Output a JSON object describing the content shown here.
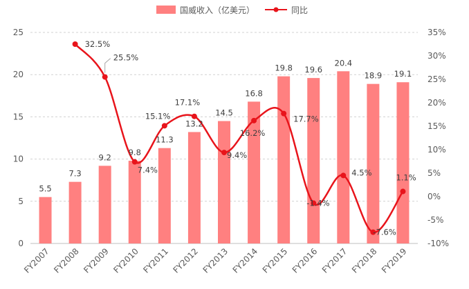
{
  "chart_data": {
    "type": "bar+line",
    "categories": [
      "FY2007",
      "FY2008",
      "FY2009",
      "FY2010",
      "FY2011",
      "FY2012",
      "FY2013",
      "FY2014",
      "FY2015",
      "FY2016",
      "FY2017",
      "FY2018",
      "FY2019"
    ],
    "series": [
      {
        "name": "国威收入（亿美元）",
        "type": "bar",
        "axis": "left",
        "color": "#ff8080",
        "values": [
          5.5,
          7.3,
          9.2,
          9.8,
          11.3,
          13.2,
          14.5,
          16.8,
          19.8,
          19.6,
          20.4,
          18.9,
          19.1
        ],
        "labels": [
          "5.5",
          "7.3",
          "9.2",
          "9.8",
          "11.3",
          "13.2",
          "14.5",
          "16.8",
          "19.8",
          "19.6",
          "20.4",
          "18.9",
          "19.1"
        ]
      },
      {
        "name": "同比",
        "type": "line",
        "axis": "right",
        "color": "#e8141b",
        "smooth": true,
        "values": [
          null,
          32.5,
          25.5,
          7.4,
          15.1,
          17.1,
          9.4,
          16.2,
          17.7,
          -1.4,
          4.5,
          -7.6,
          1.1
        ],
        "labels": [
          null,
          "32.5%",
          "25.5%",
          "7.4%",
          "15.1%",
          "17.1%",
          "9.4%",
          "16.2%",
          "17.7%",
          "-1.4%",
          "4.5%",
          "-7.6%",
          "1.1%"
        ]
      }
    ],
    "y_left": {
      "min": 0,
      "max": 25,
      "ticks": [
        "0",
        "5",
        "10",
        "15",
        "20",
        "25"
      ]
    },
    "y_right": {
      "min": -10,
      "max": 35,
      "ticks": [
        "-10%",
        "-5%",
        "0%",
        "5%",
        "10%",
        "15%",
        "20%",
        "25%",
        "30%",
        "35%"
      ]
    },
    "grid": true,
    "legend_position": "top-center"
  }
}
